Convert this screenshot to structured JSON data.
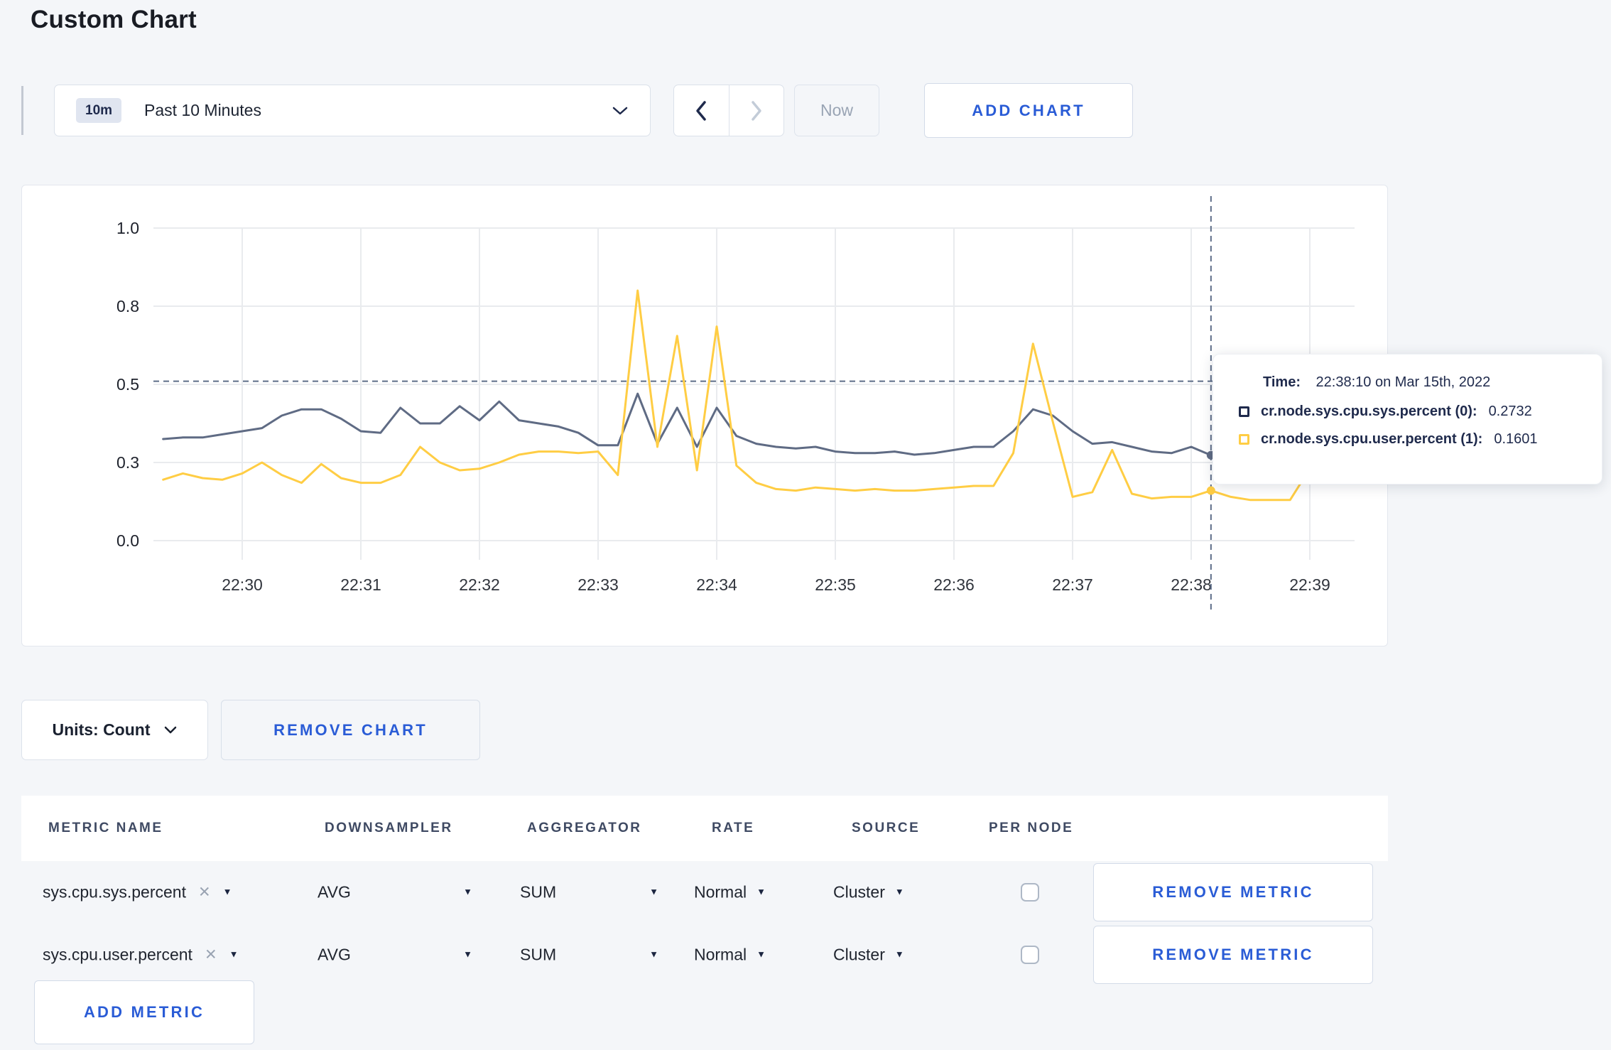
{
  "page": {
    "title": "Custom Chart",
    "background_color": "#f4f6f9",
    "accent_blue": "#2a5cd6"
  },
  "toolbar": {
    "time_window_badge": "10m",
    "time_window_label": "Past 10 Minutes",
    "now_label": "Now",
    "add_chart_label": "ADD CHART",
    "icons": [
      "chevron-down",
      "chevron-left",
      "chevron-right"
    ]
  },
  "tooltip": {
    "time_label": "Time:",
    "time_value": "22:38:10 on Mar 15th, 2022",
    "series": [
      {
        "label": "cr.node.sys.cpu.sys.percent (0):",
        "value": "0.2732",
        "color": "#1f2a4c"
      },
      {
        "label": "cr.node.sys.cpu.user.percent (1):",
        "value": "0.1601",
        "color": "#ffcd44"
      }
    ]
  },
  "chart_controls": {
    "units_label": "Units: Count",
    "remove_chart_label": "REMOVE CHART"
  },
  "metrics_table": {
    "headers": [
      "METRIC NAME",
      "DOWNSAMPLER",
      "AGGREGATOR",
      "RATE",
      "SOURCE",
      "PER NODE"
    ],
    "rows": [
      {
        "metric_name": "sys.cpu.sys.percent",
        "downsampler": "AVG",
        "aggregator": "SUM",
        "rate": "Normal",
        "source": "Cluster",
        "per_node_checked": false,
        "remove_label": "REMOVE METRIC"
      },
      {
        "metric_name": "sys.cpu.user.percent",
        "downsampler": "AVG",
        "aggregator": "SUM",
        "rate": "Normal",
        "source": "Cluster",
        "per_node_checked": false,
        "remove_label": "REMOVE METRIC"
      }
    ],
    "add_metric_label": "ADD METRIC"
  },
  "chart_data": {
    "type": "line",
    "title": "",
    "xlabel": "",
    "ylabel": "",
    "ylim": [
      0,
      1
    ],
    "grid": true,
    "legend_position": "tooltip-only",
    "x_ticks": [
      "22:30",
      "22:31",
      "22:32",
      "22:33",
      "22:34",
      "22:35",
      "22:36",
      "22:37",
      "22:38",
      "22:39"
    ],
    "y_ticks": [
      {
        "value": 0.0,
        "label": "0.0"
      },
      {
        "value": 0.25,
        "label": "0.3"
      },
      {
        "value": 0.5,
        "label": "0.5"
      },
      {
        "value": 0.75,
        "label": "0.8"
      },
      {
        "value": 1.0,
        "label": "1.0"
      }
    ],
    "x_start": "22:29:20",
    "x_end": "22:39:20",
    "interval_seconds": 10,
    "series": [
      {
        "name": "cr.node.sys.cpu.sys.percent",
        "color": "#5f6b84",
        "values": [
          0.325,
          0.33,
          0.33,
          0.34,
          0.35,
          0.36,
          0.4,
          0.42,
          0.42,
          0.39,
          0.35,
          0.345,
          0.425,
          0.375,
          0.375,
          0.43,
          0.385,
          0.445,
          0.385,
          0.375,
          0.365,
          0.345,
          0.305,
          0.305,
          0.47,
          0.31,
          0.425,
          0.3,
          0.425,
          0.335,
          0.31,
          0.3,
          0.295,
          0.3,
          0.285,
          0.28,
          0.28,
          0.285,
          0.275,
          0.28,
          0.29,
          0.3,
          0.3,
          0.35,
          0.42,
          0.4,
          0.35,
          0.31,
          0.315,
          0.3,
          0.285,
          0.28,
          0.3,
          0.2732,
          0.285,
          0.31,
          0.295,
          0.275,
          0.3,
          0.295,
          0.305
        ]
      },
      {
        "name": "cr.node.sys.cpu.user.percent",
        "color": "#ffcd44",
        "values": [
          0.195,
          0.215,
          0.2,
          0.195,
          0.215,
          0.25,
          0.21,
          0.185,
          0.245,
          0.2,
          0.185,
          0.185,
          0.21,
          0.3,
          0.25,
          0.225,
          0.23,
          0.25,
          0.275,
          0.285,
          0.285,
          0.28,
          0.285,
          0.21,
          0.8,
          0.3,
          0.655,
          0.225,
          0.685,
          0.24,
          0.185,
          0.165,
          0.16,
          0.17,
          0.165,
          0.16,
          0.165,
          0.16,
          0.16,
          0.165,
          0.17,
          0.175,
          0.175,
          0.28,
          0.63,
          0.38,
          0.14,
          0.155,
          0.29,
          0.15,
          0.135,
          0.14,
          0.14,
          0.1601,
          0.14,
          0.13,
          0.13,
          0.13,
          0.23,
          0.285,
          0.255
        ]
      }
    ],
    "crosshair": {
      "time": "22:38:10",
      "threshold_value": 0.51,
      "point_values": [
        0.2732,
        0.1601
      ]
    }
  }
}
